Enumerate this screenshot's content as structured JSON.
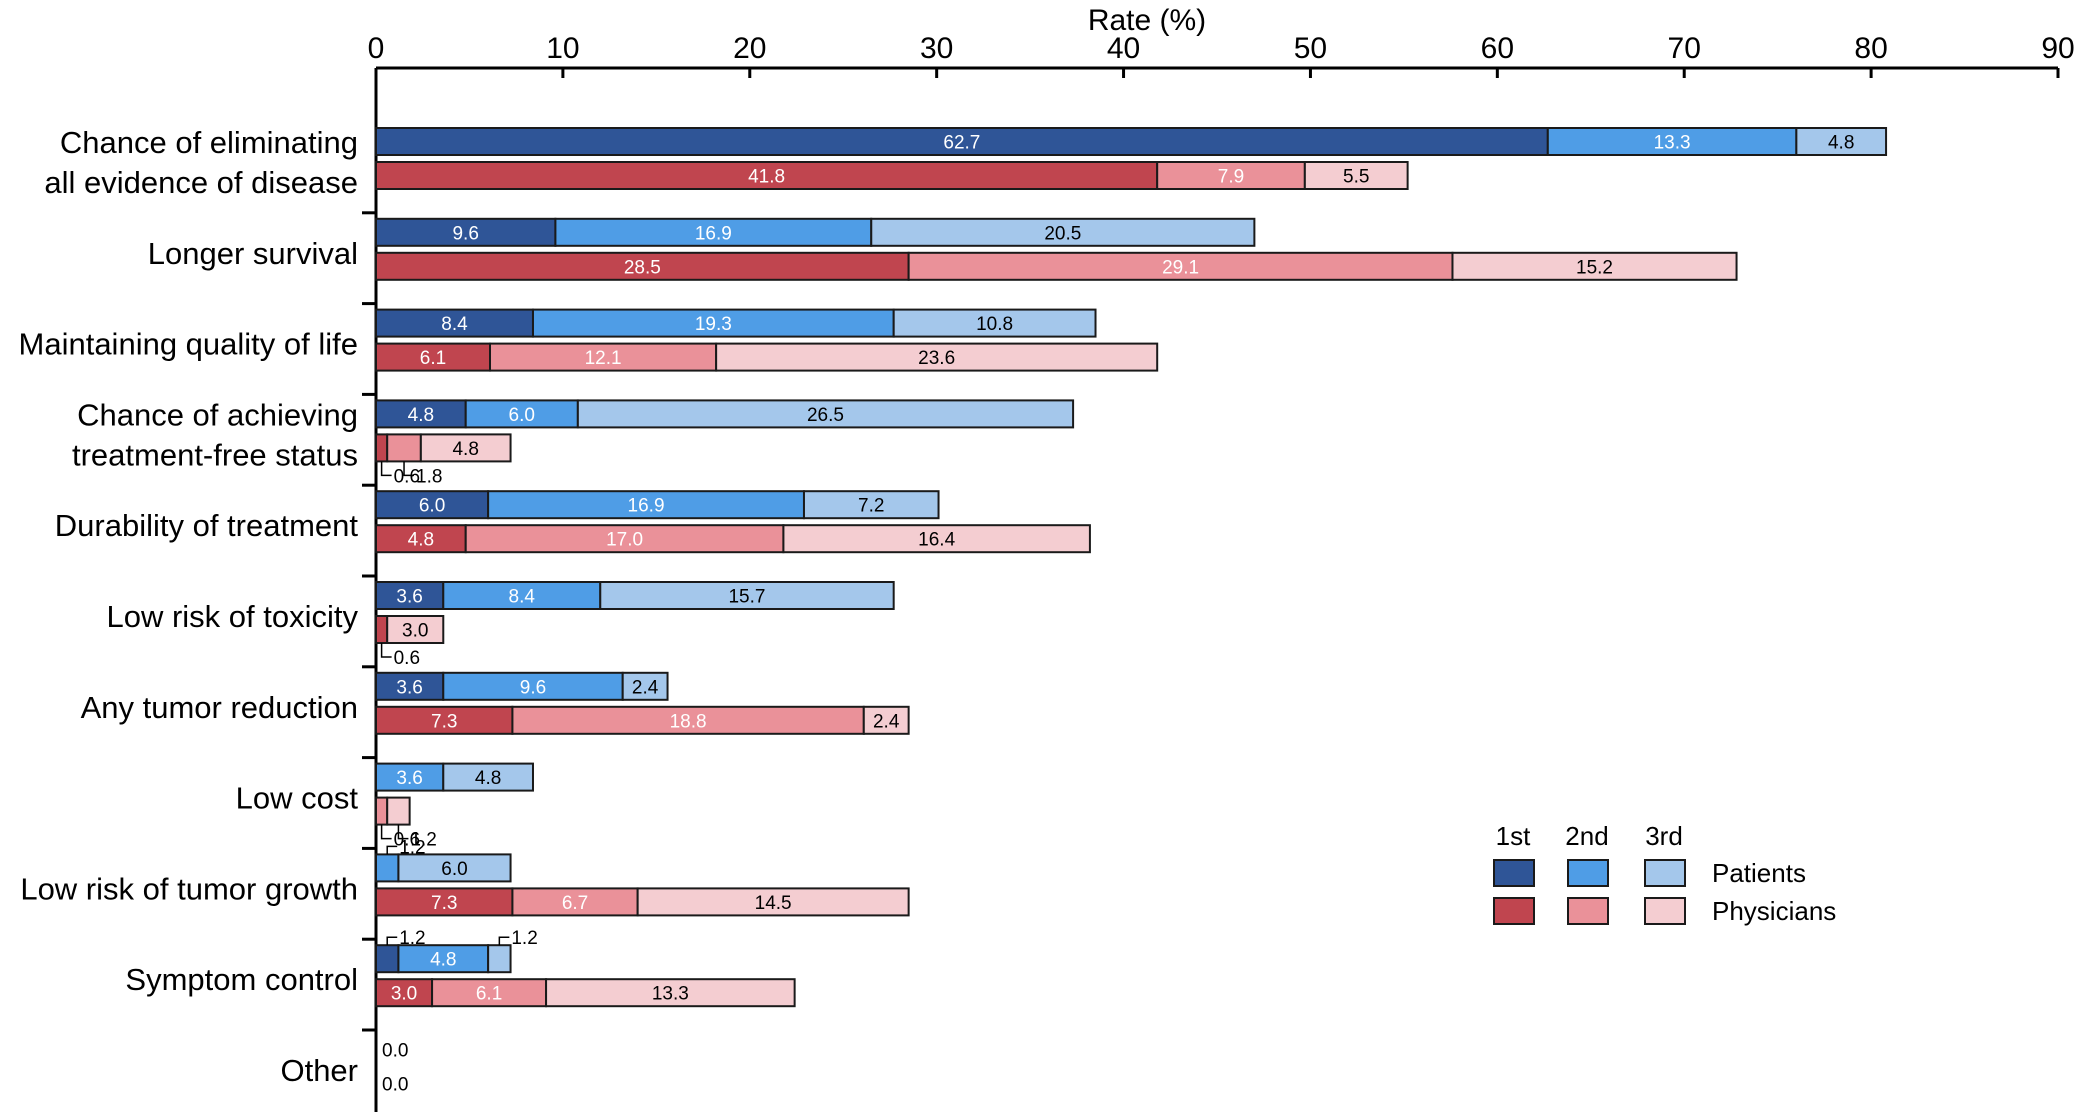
{
  "chart_data": {
    "type": "bar",
    "orientation": "horizontal",
    "stacked": true,
    "title": "",
    "xlabel": "Rate (%)",
    "ylabel": "",
    "xlim": [
      0,
      90
    ],
    "xticks": [
      0,
      10,
      20,
      30,
      40,
      50,
      60,
      70,
      80,
      90
    ],
    "grid": false,
    "legend_position": "bottom-right",
    "categories": [
      [
        "Chance of eliminating",
        "all evidence of disease"
      ],
      [
        "Longer survival"
      ],
      [
        "Maintaining quality of life"
      ],
      [
        "Chance of achieving",
        "treatment-free status"
      ],
      [
        "Durability of treatment"
      ],
      [
        "Low risk of toxicity"
      ],
      [
        "Any tumor reduction"
      ],
      [
        "Low cost"
      ],
      [
        "Low risk of tumor growth"
      ],
      [
        "Symptom control"
      ],
      [
        "Other"
      ]
    ],
    "rank_labels": [
      "1st",
      "2nd",
      "3rd"
    ],
    "groups": [
      {
        "name": "Patients",
        "colors": [
          "#2f5597",
          "#4f9de6",
          "#a4c7eb"
        ]
      },
      {
        "name": "Physicians",
        "colors": [
          "#c0454f",
          "#ea9199",
          "#f4cdd1"
        ]
      }
    ],
    "series": {
      "Patients": [
        [
          62.7,
          13.3,
          4.8
        ],
        [
          9.6,
          16.9,
          20.5
        ],
        [
          8.4,
          19.3,
          10.8
        ],
        [
          4.8,
          6.0,
          26.5
        ],
        [
          6.0,
          16.9,
          7.2
        ],
        [
          3.6,
          8.4,
          15.7
        ],
        [
          3.6,
          9.6,
          2.4
        ],
        [
          0,
          3.6,
          4.8
        ],
        [
          0,
          1.2,
          6.0
        ],
        [
          1.2,
          4.8,
          1.2
        ],
        [
          0.0,
          0,
          0
        ]
      ],
      "Physicians": [
        [
          41.8,
          7.9,
          5.5
        ],
        [
          28.5,
          29.1,
          15.2
        ],
        [
          6.1,
          12.1,
          23.6
        ],
        [
          0.6,
          1.8,
          4.8
        ],
        [
          4.8,
          17.0,
          16.4
        ],
        [
          0.6,
          0,
          3.0
        ],
        [
          7.3,
          18.8,
          2.4
        ],
        [
          0,
          0.6,
          1.2
        ],
        [
          7.3,
          6.7,
          14.5
        ],
        [
          3.0,
          6.1,
          13.3
        ],
        [
          0.0,
          0,
          0
        ]
      ]
    },
    "value_text": {
      "Patients": [
        [
          "62.7",
          "13.3",
          "4.8"
        ],
        [
          "9.6",
          "16.9",
          "20.5"
        ],
        [
          "8.4",
          "19.3",
          "10.8"
        ],
        [
          "4.8",
          "6.0",
          "26.5"
        ],
        [
          "6.0",
          "16.9",
          "7.2"
        ],
        [
          "3.6",
          "8.4",
          "15.7"
        ],
        [
          "3.6",
          "9.6",
          "2.4"
        ],
        [
          "",
          "3.6",
          "4.8"
        ],
        [
          "",
          "1.2",
          "6.0"
        ],
        [
          "1.2",
          "4.8",
          "1.2"
        ],
        [
          "0.0",
          "",
          ""
        ]
      ],
      "Physicians": [
        [
          "41.8",
          "7.9",
          "5.5"
        ],
        [
          "28.5",
          "29.1",
          "15.2"
        ],
        [
          "6.1",
          "12.1",
          "23.6"
        ],
        [
          "0.6",
          "1.8",
          "4.8"
        ],
        [
          "4.8",
          "17.0",
          "16.4"
        ],
        [
          "0.6",
          "",
          "3.0"
        ],
        [
          "7.3",
          "18.8",
          "2.4"
        ],
        [
          "",
          "0.6",
          "1.2"
        ],
        [
          "7.3",
          "6.7",
          "14.5"
        ],
        [
          "3.0",
          "6.1",
          "13.3"
        ],
        [
          "0.0",
          "",
          ""
        ]
      ]
    }
  }
}
